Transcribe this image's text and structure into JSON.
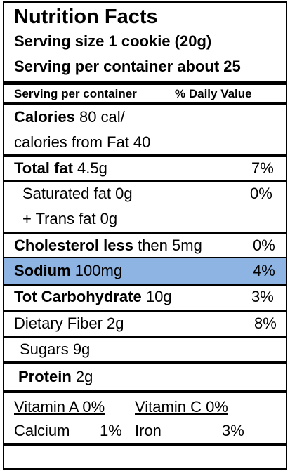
{
  "title": "Nutrition Facts",
  "serving_size": "Serving size 1 cookie (20g)",
  "servings_per_container": "Serving per container about 25",
  "column_header": {
    "left": "Serving per container",
    "right": "% Daily Value"
  },
  "calories": {
    "label": "Calories",
    "value": "80 cal/",
    "from_fat": "calories from Fat 40"
  },
  "total_fat": {
    "label": "Total fat",
    "value": "4.5g",
    "dv": "7%"
  },
  "saturated_fat": {
    "label": "Saturated fat 0g",
    "dv": "0%"
  },
  "trans_fat": {
    "label": "+ Trans fat 0g"
  },
  "cholesterol": {
    "label": "Cholesterol less",
    "value": "then 5mg",
    "dv": "0%"
  },
  "sodium": {
    "label": "Sodium",
    "value": "100mg",
    "dv": "4%",
    "highlight": "#8eb4e3"
  },
  "carbohydrate": {
    "label": "Tot Carbohydrate",
    "value": "10g",
    "dv": "3%"
  },
  "fiber": {
    "label": "Dietary Fiber  2g",
    "dv": "8%"
  },
  "sugars": {
    "label": "Sugars 9g"
  },
  "protein": {
    "label": "Protein",
    "value": "2g"
  },
  "vitamins": {
    "vitamin_a": "Vitamin A 0%",
    "vitamin_c": "Vitamin C 0%",
    "calcium_label": "Calcium",
    "calcium_value": "1%",
    "iron_label": "Iron",
    "iron_value": "3%"
  }
}
